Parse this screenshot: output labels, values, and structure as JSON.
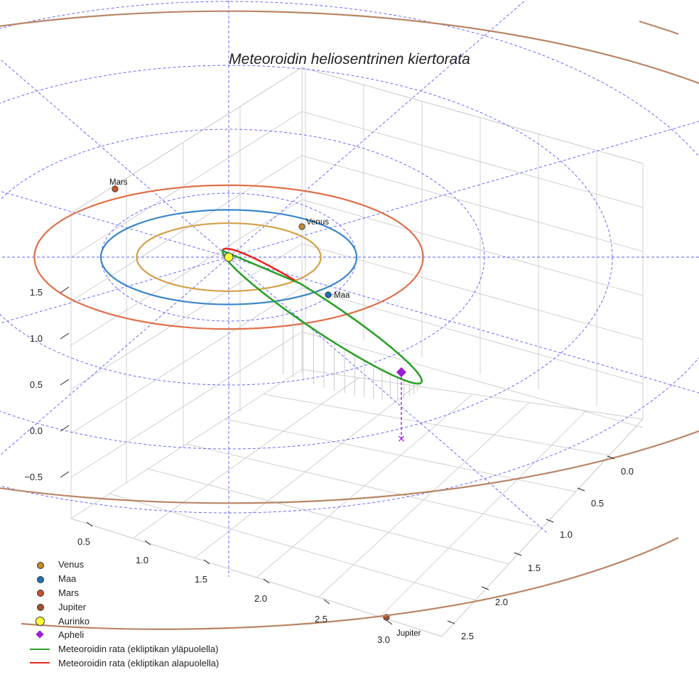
{
  "chart_data": {
    "type": "line",
    "title": "Meteoroidin heliosentrinen kiertorata",
    "z_ticks": [
      "1.5",
      "1.0",
      "0.5",
      "0.0",
      "−0.5"
    ],
    "x_ticks": [
      "0.5",
      "1.0",
      "1.5",
      "2.0",
      "2.5",
      "3.0"
    ],
    "y_ticks": [
      "0.0",
      "0.5",
      "1.0",
      "1.5",
      "2.0",
      "2.5"
    ],
    "planets": [
      {
        "name": "Venus",
        "orbit_radius_au": 0.72,
        "color": "#d4a04a",
        "marker_color": "#c8862a",
        "label": "Venus"
      },
      {
        "name": "Maa",
        "orbit_radius_au": 1.0,
        "color": "#3a86c8",
        "marker_color": "#1f6fb5",
        "label": "Maa"
      },
      {
        "name": "Mars",
        "orbit_radius_au": 1.52,
        "color": "#e0704a",
        "marker_color": "#c8522a",
        "label": "Mars"
      },
      {
        "name": "Jupiter",
        "orbit_radius_au": 5.2,
        "color": "#b98566",
        "marker_color": "#a0522d",
        "label": "Jupiter"
      }
    ],
    "sun": {
      "name": "Aurinko",
      "color": "#ffff33"
    },
    "aphelion": {
      "name": "Apheli",
      "color": "#9b1fd6"
    },
    "meteoroid_orbit": {
      "above": {
        "name": "Meteoroidin rata (ekliptikan yläpuolella)",
        "color": "#2ca02c"
      },
      "below": {
        "name": "Meteoroidin rata (ekliptikan alapuolella)",
        "color": "#e8281e"
      }
    },
    "grid": true,
    "legend_position": "bottom-left"
  },
  "legend": [
    {
      "label": "Venus",
      "kind": "dot",
      "color": "#c8862a"
    },
    {
      "label": "Maa",
      "kind": "dot",
      "color": "#1f6fb5"
    },
    {
      "label": "Mars",
      "kind": "dot",
      "color": "#c8522a"
    },
    {
      "label": "Jupiter",
      "kind": "dot",
      "color": "#a0522d"
    },
    {
      "label": "Aurinko",
      "kind": "big",
      "color": "#ffff33"
    },
    {
      "label": "Apheli",
      "kind": "diamond",
      "color": "#9b1fd6"
    },
    {
      "label": "Meteoroidin rata (ekliptikan yläpuolella)",
      "kind": "line",
      "color": "#2ca02c"
    },
    {
      "label": "Meteoroidin rata (ekliptikan alapuolella)",
      "kind": "line",
      "color": "#e8281e"
    }
  ]
}
